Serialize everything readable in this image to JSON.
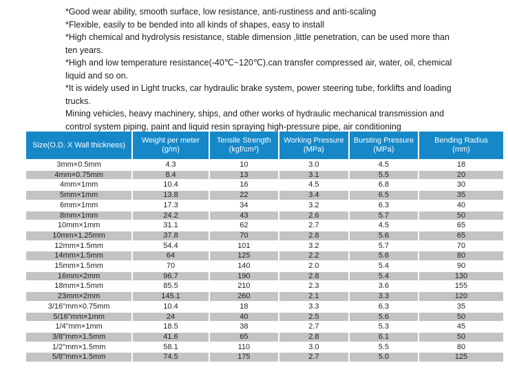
{
  "intro": {
    "paragraphs": [
      "*Good wear ability, smooth surface, low resistance, anti-rustiness and anti-scaling",
      "*Flexible, easily to be bended into all kinds of shapes, easy to install",
      "*High chemical and hydrolysis resistance, stable dimension ,little penetration, can be used more than ten years.",
      "*High and low temperature resistance(-40℃~120℃).can transfer compressed air, water, oil, chemical liquid and so on.",
      "*It is widely used in Light trucks, car hydraulic brake system, power steering tube, forklifts and loading trucks.",
      "Mining vehicles, heavy machinery, ships, and other works of hydraulic mechanical transmission and control system piping, paint and liquid resin spraying high-pressure pipe, air conditioning"
    ]
  },
  "table": {
    "headers": [
      {
        "line1": "Size(O.D. X Wall thickness)",
        "line2": ""
      },
      {
        "line1": "Weight per meter",
        "line2": "(g/m)"
      },
      {
        "line1": "Tensile Strength",
        "line2": "(kgf/cm²)"
      },
      {
        "line1": "Working Pressure",
        "line2": "(MPa)"
      },
      {
        "line1": "Bursting Pressure",
        "line2": "(MPa)"
      },
      {
        "line1": "Bending Radius",
        "line2": "(mm)"
      }
    ],
    "rows": [
      [
        "3mm×0.5mm",
        "4.3",
        "10",
        "3.0",
        "4.5",
        "18"
      ],
      [
        "4mm×0.75mm",
        "8.4",
        "13",
        "3.1",
        "5.5",
        "20"
      ],
      [
        "4mm×1mm",
        "10.4",
        "16",
        "4.5",
        "6.8",
        "30"
      ],
      [
        "5mm×1mm",
        "13.8",
        "22",
        "3.4",
        "6.5",
        "35"
      ],
      [
        "6mm×1mm",
        "17.3",
        "34",
        "3.2",
        "6.3",
        "40"
      ],
      [
        "8mm×1mm",
        "24.2",
        "43",
        "2.6",
        "5.7",
        "50"
      ],
      [
        "10mm×1mm",
        "31.1",
        "62",
        "2.7",
        "4.5",
        "65"
      ],
      [
        "10mm×1.25mm",
        "37.8",
        "70",
        "2.8",
        "5.6",
        "65"
      ],
      [
        "12mm×1.5mm",
        "54.4",
        "101",
        "3.2",
        "5.7",
        "70"
      ],
      [
        "14mm×1.5mm",
        "64",
        "125",
        "2.2",
        "5.6",
        "80"
      ],
      [
        "15mm×1.5mm",
        "70",
        "140",
        "2.0",
        "5.4",
        "90"
      ],
      [
        "16mm×2mm",
        "96.7",
        "190",
        "2.8",
        "5.4",
        "130"
      ],
      [
        "18mm×1.5mm",
        "85.5",
        "210",
        "2.3",
        "3.6",
        "155"
      ],
      [
        "23mm×2mm",
        "145.1",
        "260",
        "2.1",
        "3.3",
        "120"
      ],
      [
        "3/16\"mm×0.75mm",
        "10.4",
        "18",
        "3.3",
        "6.3",
        "35"
      ],
      [
        "5/16\"mm×1mm",
        "24",
        "40",
        "2.5",
        "5.6",
        "50"
      ],
      [
        "1/4\"mm×1mm",
        "18.5",
        "38",
        "2.7",
        "5.3",
        "45"
      ],
      [
        "3/8\"mm×1.5mm",
        "41.6",
        "65",
        "2.8",
        "6.1",
        "50"
      ],
      [
        "1/2\"mm×1.5mm",
        "58.1",
        "110",
        "3.0",
        "5.5",
        "80"
      ],
      [
        "5/8\"mm×1.5mm",
        "74.5",
        "175",
        "2.7",
        "5.0",
        "125"
      ]
    ],
    "colors": {
      "header_bg": "#1688c8",
      "header_text": "#ffffff",
      "row_alt_bg": "#c3c3c3",
      "row_bg": "#ffffff",
      "text": "#1f1f1f"
    }
  }
}
